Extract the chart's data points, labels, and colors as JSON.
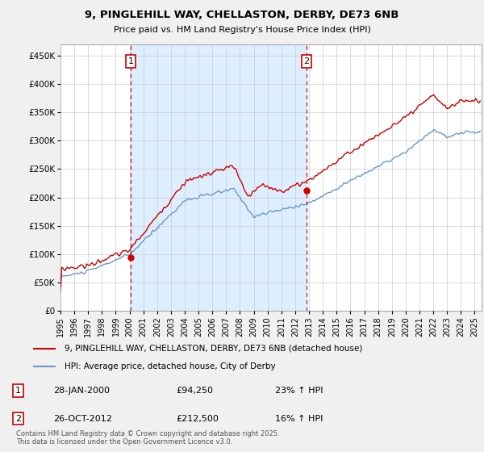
{
  "title1": "9, PINGLEHILL WAY, CHELLASTON, DERBY, DE73 6NB",
  "title2": "Price paid vs. HM Land Registry's House Price Index (HPI)",
  "ytick_values": [
    0,
    50000,
    100000,
    150000,
    200000,
    250000,
    300000,
    350000,
    400000,
    450000
  ],
  "ylim": [
    0,
    470000
  ],
  "xlim_start": 1995.0,
  "xlim_end": 2025.5,
  "xtick_years": [
    1995,
    1996,
    1997,
    1998,
    1999,
    2000,
    2001,
    2002,
    2003,
    2004,
    2005,
    2006,
    2007,
    2008,
    2009,
    2010,
    2011,
    2012,
    2013,
    2014,
    2015,
    2016,
    2017,
    2018,
    2019,
    2020,
    2021,
    2022,
    2023,
    2024,
    2025
  ],
  "red_line_color": "#cc0000",
  "blue_line_color": "#6699cc",
  "fill_color": "#ddeeff",
  "vline_color": "#cc0000",
  "marker1_x": 2000.08,
  "marker1_y": 94250,
  "marker2_x": 2012.82,
  "marker2_y": 212500,
  "legend1": "9, PINGLEHILL WAY, CHELLASTON, DERBY, DE73 6NB (detached house)",
  "legend2": "HPI: Average price, detached house, City of Derby",
  "note1_num": "1",
  "note1_date": "28-JAN-2000",
  "note1_price": "£94,250",
  "note1_hpi": "23% ↑ HPI",
  "note2_num": "2",
  "note2_date": "26-OCT-2012",
  "note2_price": "£212,500",
  "note2_hpi": "16% ↑ HPI",
  "copyright": "Contains HM Land Registry data © Crown copyright and database right 2025.\nThis data is licensed under the Open Government Licence v3.0.",
  "background_color": "#f0f0f0",
  "plot_background": "#ffffff"
}
